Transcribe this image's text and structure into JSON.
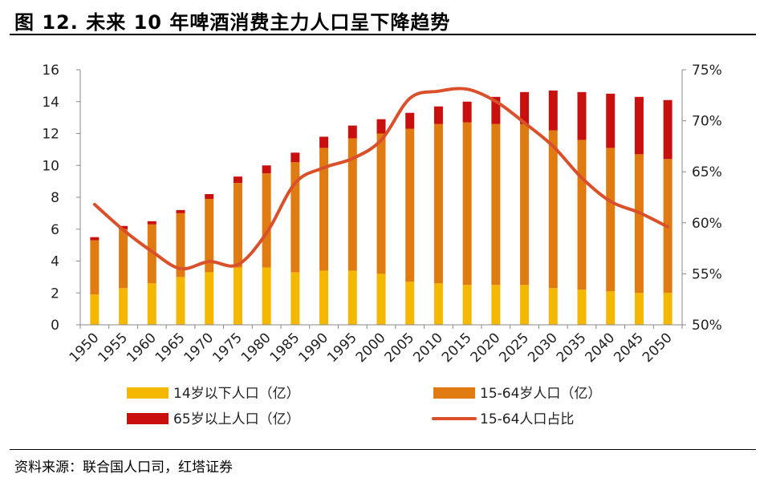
{
  "figure": {
    "title": "图 12. 未来 10 年啤酒消费主力人口呈下降趋势",
    "source": "资料来源：联合国人口司，红塔证券"
  },
  "colors": {
    "age_0_14": "#F5B800",
    "age_15_64": "#E07B12",
    "age_65_plus": "#C8100F",
    "ratio_line": "#D9502A",
    "axis": "#888888"
  },
  "chart_data": {
    "type": "bar",
    "stacked": true,
    "categories": [
      "1950",
      "1955",
      "1960",
      "1965",
      "1970",
      "1975",
      "1980",
      "1985",
      "1990",
      "1995",
      "2000",
      "2005",
      "2010",
      "2015",
      "2020",
      "2025",
      "2030",
      "2035",
      "2040",
      "2045",
      "2050"
    ],
    "series": [
      {
        "name": "14岁以下人口（亿）",
        "axis": "left",
        "values": [
          1.9,
          2.3,
          2.6,
          3.0,
          3.3,
          3.6,
          3.6,
          3.3,
          3.4,
          3.4,
          3.2,
          2.7,
          2.6,
          2.5,
          2.5,
          2.5,
          2.3,
          2.2,
          2.1,
          2.0,
          2.0
        ]
      },
      {
        "name": "15-64岁人口（亿）",
        "axis": "left",
        "values": [
          3.4,
          3.7,
          3.7,
          4.0,
          4.6,
          5.3,
          5.9,
          6.9,
          7.7,
          8.3,
          8.8,
          9.6,
          10.0,
          10.2,
          10.1,
          10.1,
          9.9,
          9.4,
          9.0,
          8.7,
          8.4
        ]
      },
      {
        "name": "65岁以上人口（亿）",
        "axis": "left",
        "values": [
          0.2,
          0.2,
          0.2,
          0.2,
          0.3,
          0.4,
          0.5,
          0.6,
          0.7,
          0.8,
          0.9,
          1.0,
          1.1,
          1.3,
          1.7,
          2.0,
          2.5,
          3.0,
          3.4,
          3.6,
          3.7
        ]
      },
      {
        "name": "15-64人口占比",
        "type": "line",
        "axis": "right",
        "values": [
          61.8,
          59.3,
          57.2,
          55.5,
          56.2,
          55.9,
          59.0,
          63.9,
          65.4,
          66.3,
          68.1,
          72.2,
          72.9,
          73.1,
          71.9,
          69.8,
          67.5,
          64.4,
          62.1,
          61.0,
          59.6
        ]
      }
    ],
    "ylim": [
      0,
      16
    ],
    "yticks": [
      "0",
      "2",
      "4",
      "6",
      "8",
      "10",
      "12",
      "14",
      "16"
    ],
    "y2lim": [
      50,
      75
    ],
    "y2ticks": [
      "50%",
      "55%",
      "60%",
      "65%",
      "70%",
      "75%"
    ],
    "xlabel": "",
    "ylabel": "",
    "legend_position": "bottom",
    "grid": false
  }
}
